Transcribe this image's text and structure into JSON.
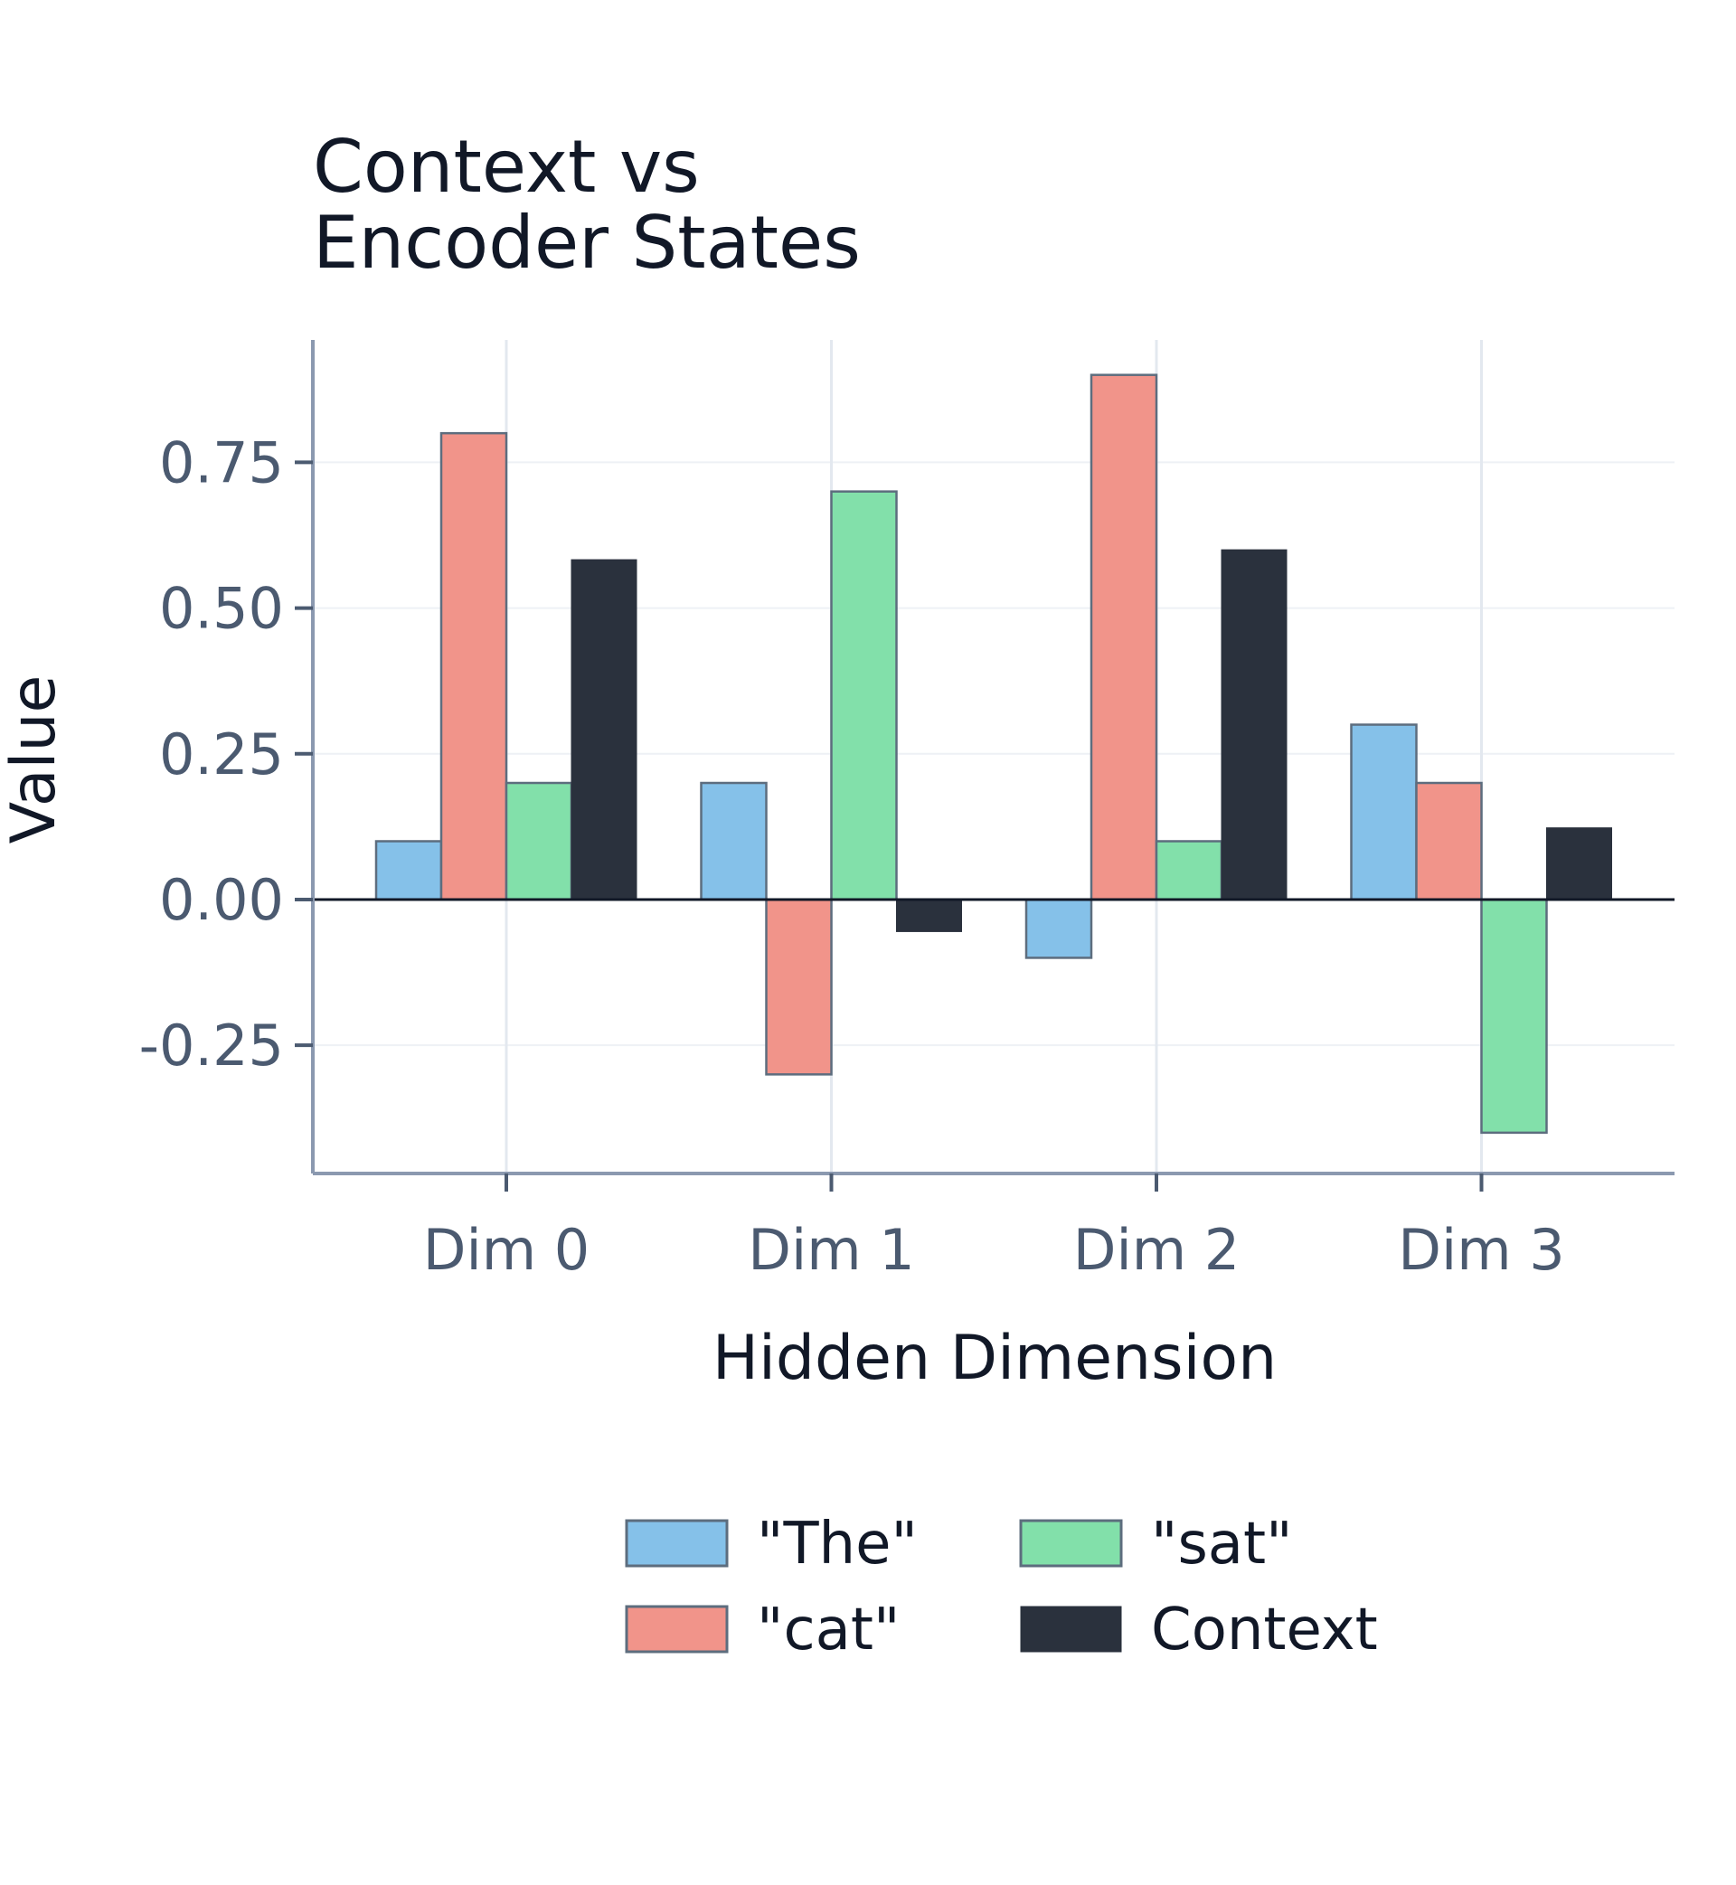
{
  "chart_data": {
    "type": "bar",
    "title_lines": [
      "Context vs",
      "Encoder States"
    ],
    "xlabel": "Hidden Dimension",
    "ylabel": "Value",
    "categories": [
      "Dim 0",
      "Dim 1",
      "Dim 2",
      "Dim 3"
    ],
    "yticks": [
      -0.25,
      0.0,
      0.25,
      0.5,
      0.75
    ],
    "ytick_labels": [
      "-0.25",
      "0.00",
      "0.25",
      "0.50",
      "0.75"
    ],
    "ylim": [
      -0.47,
      0.96
    ],
    "grid": true,
    "legend_position": "bottom-center",
    "series": [
      {
        "name": "\"The\"",
        "values": [
          0.1,
          0.2,
          -0.1,
          0.3
        ],
        "color": "#85c1e9"
      },
      {
        "name": "\"cat\"",
        "values": [
          0.8,
          -0.3,
          0.9,
          0.2
        ],
        "color": "#f1948a"
      },
      {
        "name": "\"sat\"",
        "values": [
          0.2,
          0.7,
          0.1,
          -0.4
        ],
        "color": "#82e0aa"
      },
      {
        "name": "Context",
        "values": [
          0.583,
          -0.055,
          0.6,
          0.123
        ],
        "color": "#2a313d"
      }
    ]
  }
}
